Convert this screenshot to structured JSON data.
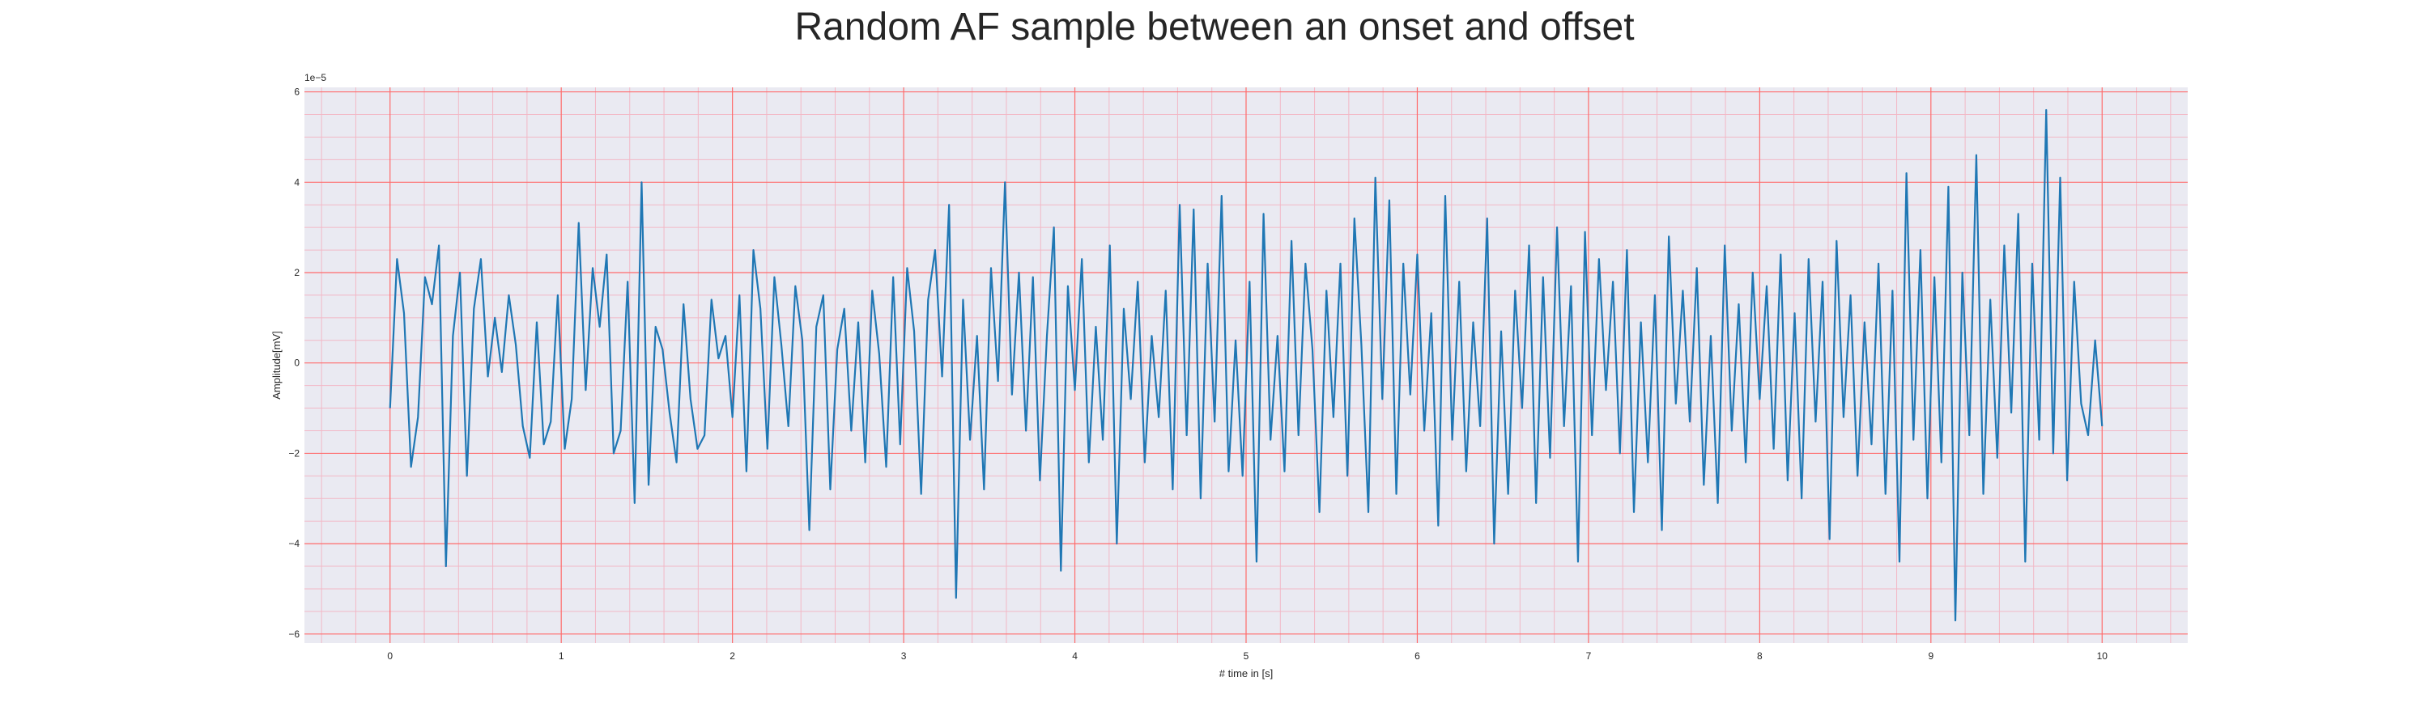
{
  "chart_data": {
    "type": "line",
    "title": "Random AF sample between an onset and offset",
    "xlabel": "# time in [s]",
    "ylabel": "Amplitude[mV]",
    "y_offset_text": "1e−5",
    "xlim": [
      -0.5,
      10.5
    ],
    "ylim": [
      -6.2,
      6.1
    ],
    "x_ticks": [
      0,
      1,
      2,
      3,
      4,
      5,
      6,
      7,
      8,
      9,
      10
    ],
    "x_tick_labels": [
      "0",
      "1",
      "2",
      "3",
      "4",
      "5",
      "6",
      "7",
      "8",
      "9",
      "10"
    ],
    "y_ticks": [
      -6,
      -4,
      -2,
      0,
      2,
      4,
      6
    ],
    "y_tick_labels": [
      "−6",
      "−4",
      "−2",
      "0",
      "2",
      "4",
      "6"
    ],
    "grid": {
      "major": true,
      "minor": true
    },
    "colors": {
      "line": "#1f77b4",
      "plot_bg": "#eaeaf2",
      "major_grid": "#ff6b6b",
      "minor_grid": "#f2b8c6"
    },
    "series": [
      {
        "x_start": 0,
        "x_end": 10,
        "y": [
          -1.0,
          2.3,
          1.1,
          -2.3,
          -1.2,
          1.9,
          1.3,
          2.6,
          -4.5,
          0.6,
          2.0,
          -2.5,
          1.2,
          2.3,
          -0.3,
          1.0,
          -0.2,
          1.5,
          0.4,
          -1.4,
          -2.1,
          0.9,
          -1.8,
          -1.3,
          1.5,
          -1.9,
          -0.8,
          3.1,
          -0.6,
          2.1,
          0.8,
          2.4,
          -2.0,
          -1.5,
          1.8,
          -3.1,
          4.0,
          -2.7,
          0.8,
          0.3,
          -1.1,
          -2.2,
          1.3,
          -0.8,
          -1.9,
          -1.6,
          1.4,
          0.1,
          0.6,
          -1.2,
          1.5,
          -2.4,
          2.5,
          1.2,
          -1.9,
          1.9,
          0.4,
          -1.4,
          1.7,
          0.5,
          -3.7,
          0.8,
          1.5,
          -2.8,
          0.3,
          1.2,
          -1.5,
          0.9,
          -2.2,
          1.6,
          0.2,
          -2.3,
          1.9,
          -1.8,
          2.1,
          0.7,
          -2.9,
          1.4,
          2.5,
          -0.3,
          3.5,
          -5.2,
          1.4,
          -1.7,
          0.6,
          -2.8,
          2.1,
          -0.4,
          4.0,
          -0.7,
          2.0,
          -1.5,
          1.9,
          -2.6,
          0.6,
          3.0,
          -4.6,
          1.7,
          -0.6,
          2.3,
          -2.2,
          0.8,
          -1.7,
          2.6,
          -4.0,
          1.2,
          -0.8,
          1.8,
          -2.2,
          0.6,
          -1.2,
          1.6,
          -2.8,
          3.5,
          -1.6,
          3.4,
          -3.0,
          2.2,
          -1.3,
          3.7,
          -2.4,
          0.5,
          -2.5,
          1.8,
          -4.4,
          3.3,
          -1.7,
          0.6,
          -2.4,
          2.7,
          -1.6,
          2.2,
          0.3,
          -3.3,
          1.6,
          -1.2,
          2.2,
          -2.5,
          3.2,
          0.4,
          -3.3,
          4.1,
          -0.8,
          3.6,
          -2.9,
          2.2,
          -0.7,
          2.4,
          -1.5,
          1.1,
          -3.6,
          3.7,
          -1.7,
          1.8,
          -2.4,
          0.9,
          -1.4,
          3.2,
          -4.0,
          0.7,
          -2.9,
          1.6,
          -1.0,
          2.6,
          -3.1,
          1.9,
          -2.1,
          3.0,
          -1.4,
          1.7,
          -4.4,
          2.9,
          -1.6,
          2.3,
          -0.6,
          1.8,
          -2.0,
          2.5,
          -3.3,
          0.9,
          -2.2,
          1.5,
          -3.7,
          2.8,
          -0.9,
          1.6,
          -1.3,
          2.1,
          -2.7,
          0.6,
          -3.1,
          2.6,
          -1.5,
          1.3,
          -2.2,
          2.0,
          -0.8,
          1.7,
          -1.9,
          2.4,
          -2.6,
          1.1,
          -3.0,
          2.3,
          -1.3,
          1.8,
          -3.9,
          2.7,
          -1.2,
          1.5,
          -2.5,
          0.9,
          -1.8,
          2.2,
          -2.9,
          1.6,
          -4.4,
          4.2,
          -1.7,
          2.5,
          -3.0,
          1.9,
          -2.2,
          3.9,
          -5.7,
          2.0,
          -1.6,
          4.6,
          -2.9,
          1.4,
          -2.1,
          2.6,
          -1.1,
          3.3,
          -4.4,
          2.2,
          -1.7,
          5.6,
          -2.0,
          4.1,
          -2.6,
          1.8,
          -0.9,
          -1.6,
          0.5,
          -1.4
        ]
      }
    ]
  }
}
